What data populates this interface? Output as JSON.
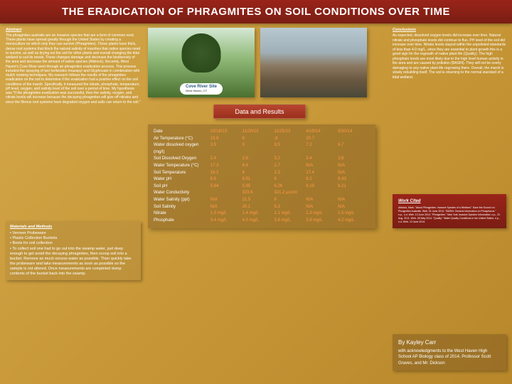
{
  "header": {
    "title": "THE ERADICATION OF PHRAGMITES ON SOIL CONDITIONS OVER TIME"
  },
  "abstract": {
    "title": "Abstract",
    "body": "The phragmites australis are an invasive species that are a form of common reed. These plants have spread greatly through the United States by creating a monoculture on which only they can survive (Phragmites). These plants have thick, dense root systems that block the natural salinity of marshes that native species need to survive, as well as drying out the soil for other plants and overall changing the tidal wetland to suit its needs. These changes damage and decrease the biodiversity of the area and decrease the amount of native species (Allstock). Recently, West Haven's Cove River went through an phragmites eradication process. This process included the spraying of two herbicides Imazapyr and Glyphosate in combination with mulch mowing techniques. My research follows the results of the phragmites eradication on the soil to determine if the eradication had a positive effect on the soil conditions of the marsh. Specifically, it measured the nitrate, phosphate, temperature, pH level, oxygen, and salinity level of the soil over a period of time. My hypothesis was \"If the phragmites eradication was successful, then the salinity, oxygen, and nitrate levels will increase because the decaying phragmites will give off nitrates and since the fibrous root systems have degraded oxygen and salts can return to the soil.\""
  },
  "materials": {
    "title": "Materials and Methods",
    "items": [
      "Verneer Probeware",
      "Plastic Collection Buckets",
      "Boots for soil collection",
      "To collect soil one had to go out into the swamp water, just deep enough to get avoid the decaying phragmites, then scoop soil into a bucket. Remove as much excess water as possible. Then quickly take the probeware and take measurements as soon as possible so the sample is not altered. Once measurements are completed dump contents of the bucket back into the swamp."
    ]
  },
  "images": {
    "img1_label": "Cove River Site",
    "img1_sublabel": "West Haven, CT"
  },
  "data": {
    "header": "Data and Results",
    "columns": [
      "Date",
      "10/18/13",
      "11/20/13",
      "11/25/13",
      "4/19/14",
      "5/30/14"
    ],
    "rows": [
      {
        "label": "Air Temperature (°C)",
        "v": [
          "19.9",
          "6",
          ".6",
          "20.7",
          ""
        ]
      },
      {
        "label": "Water dissolved oxygen (mg/l)",
        "v": [
          "3.9",
          "9",
          "9.5",
          "7.2",
          "6.7"
        ]
      },
      {
        "label": "Soil Dissolved Oxygen",
        "v": [
          "2.4",
          "2.8",
          "3.2",
          "3.4",
          "3.6"
        ]
      },
      {
        "label": "Water Temperature (°C)",
        "v": [
          "17.3",
          "6.4",
          "2.7",
          "N/A",
          "N/A"
        ]
      },
      {
        "label": "Soil Temperature",
        "v": [
          "16.2",
          "6",
          "2.3",
          "17.4",
          "N/A"
        ]
      },
      {
        "label": "Water pH",
        "v": [
          "6.6",
          "6.51",
          "6",
          "6.2",
          "6.43"
        ]
      },
      {
        "label": "Soil pH",
        "v": [
          "5.64",
          "5.95",
          "6.26",
          "6.19",
          "6.21"
        ]
      },
      {
        "label": "Water Conductivity",
        "v": [
          "",
          "323.6",
          "321.2 μs/cm",
          "",
          ""
        ]
      },
      {
        "label": "Water Salinity (ppt)",
        "v": [
          "N/A",
          "21.5",
          "6",
          "N/A",
          "N/A"
        ]
      },
      {
        "label": "Soil Salinity",
        "v": [
          "N/A",
          "20.1",
          "5.3",
          "N/A",
          "N/A"
        ]
      },
      {
        "label": "Nitrate",
        "v": [
          "1.0 mg/L",
          "1.4 mg/L",
          "1.1 mg/L",
          "1.3 mg/L",
          "1.5 mg/L"
        ]
      },
      {
        "label": "Phosphate",
        "v": [
          "3.4 mg/L",
          "4.0 mg/L",
          "3.8 mg/L",
          "3.9 mg/L",
          "4.2 mg/L"
        ]
      }
    ]
  },
  "conclusions": {
    "title": "Conclusions",
    "body": "As expected, dissolved oxygen levels did increase over time. Natural nitrate and phosphate levels did continue to flux. PH level of the soil did increase over time. Nitrate levels stayed within the unpolluted standards of less than 4.0 mg/L, since they are essential to plant growth this is a good sign for the regrowth of native plant life (Quality). The high phosphate levels are most likely due to the high level human activity in the area and are caused by pollution (BASIN). They will not be overly damaging to any native plant life regrowing there. Overall, the marsh is slowly rebuilding itself. The soil is returning to the normal standard of a tidal wetland."
  },
  "workcited": {
    "title": "Work Cited",
    "body": "Allstock, Mark. \"About Phragmites: Invasive Species of a Wetland.\" Save the Sound n.d. Phragmites Australis. Web. 01 June 2014. \"BASIN: General Information on Phosphorus.\" n.p., n.d. Web. 13 June 2014. \"Phragmites.\" New York Invasive Species Information. n.p., 31 Aug. 2011. Web. 28 May 2014. \"Quality.\" Water Quality Conditions in the United States. n.p., n.d. Web. 13 June 2014."
  },
  "author": {
    "byline": "By Kayley Carr",
    "ack": "with acknowledgments to the West Haven High School AP Biology class of 2014, Professor Scott Graves, and Mr. Dickson"
  },
  "colors": {
    "bg_main": "#c89838",
    "header_bg": "#8a2015",
    "accent": "#ff9944",
    "text": "#ffffff",
    "panel": "rgba(100,70,30,0.35)"
  }
}
